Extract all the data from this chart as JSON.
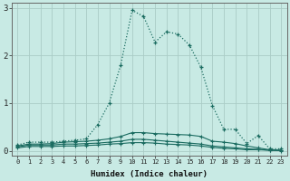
{
  "title": "",
  "xlabel": "Humidex (Indice chaleur)",
  "ylabel": "",
  "bg_color": "#c8eae4",
  "grid_color": "#aaccc6",
  "line_color": "#1a6b60",
  "xlim": [
    -0.5,
    23.5
  ],
  "ylim": [
    -0.1,
    3.1
  ],
  "yticks": [
    0,
    1,
    2,
    3
  ],
  "xticks": [
    0,
    1,
    2,
    3,
    4,
    5,
    6,
    7,
    8,
    9,
    10,
    11,
    12,
    13,
    14,
    15,
    16,
    17,
    18,
    19,
    20,
    21,
    22,
    23
  ],
  "s1_x": [
    0,
    1,
    2,
    3,
    4,
    5,
    6,
    7,
    8,
    9,
    10,
    11,
    12,
    13,
    14,
    15,
    16,
    17,
    18,
    19,
    20,
    21,
    22,
    23
  ],
  "s1_y": [
    0.12,
    0.18,
    0.18,
    0.18,
    0.2,
    0.22,
    0.25,
    0.55,
    1.0,
    1.8,
    2.95,
    2.82,
    2.28,
    2.5,
    2.45,
    2.22,
    1.75,
    0.95,
    0.45,
    0.45,
    0.15,
    0.32,
    0.04,
    0.04
  ],
  "s2_x": [
    0,
    1,
    2,
    3,
    4,
    5,
    6,
    7,
    8,
    9,
    10,
    11,
    12,
    13,
    14,
    15,
    16,
    17,
    18,
    19,
    20,
    21,
    22,
    23
  ],
  "s2_y": [
    0.1,
    0.14,
    0.14,
    0.15,
    0.18,
    0.19,
    0.2,
    0.22,
    0.25,
    0.3,
    0.38,
    0.38,
    0.36,
    0.35,
    0.34,
    0.33,
    0.3,
    0.2,
    0.18,
    0.15,
    0.1,
    0.06,
    0.02,
    0.01
  ],
  "s3_x": [
    0,
    1,
    2,
    3,
    4,
    5,
    6,
    7,
    8,
    9,
    10,
    11,
    12,
    13,
    14,
    15,
    16,
    17,
    18,
    19,
    20,
    21,
    22,
    23
  ],
  "s3_y": [
    0.08,
    0.12,
    0.12,
    0.12,
    0.14,
    0.14,
    0.15,
    0.16,
    0.18,
    0.2,
    0.24,
    0.24,
    0.22,
    0.2,
    0.18,
    0.16,
    0.14,
    0.1,
    0.08,
    0.06,
    0.04,
    0.03,
    0.01,
    0.01
  ],
  "s4_x": [
    0,
    1,
    2,
    3,
    4,
    5,
    6,
    7,
    8,
    9,
    10,
    11,
    12,
    13,
    14,
    15,
    16,
    17,
    18,
    19,
    20,
    21,
    22,
    23
  ],
  "s4_y": [
    0.06,
    0.09,
    0.09,
    0.09,
    0.1,
    0.1,
    0.11,
    0.12,
    0.14,
    0.15,
    0.17,
    0.17,
    0.16,
    0.14,
    0.13,
    0.12,
    0.1,
    0.07,
    0.05,
    0.04,
    0.02,
    0.02,
    0.01,
    0.0
  ]
}
